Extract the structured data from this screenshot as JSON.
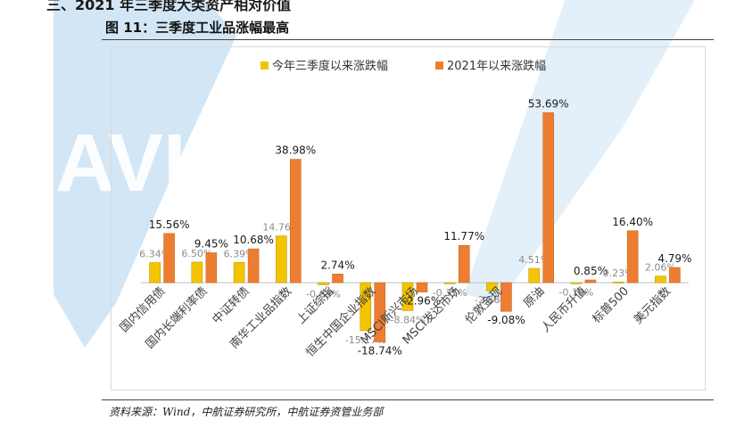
{
  "header": {
    "section_heading": "三、2021 年三季度大类资产相对价值",
    "figure_title": "图 11：三季度工业品涨幅最高"
  },
  "watermark": {
    "text": "AVIC",
    "color": "#cfe3f3"
  },
  "footer": {
    "source": "资料来源：Wind，中航证券研究所，中航证券资管业务部"
  },
  "chart_data": {
    "type": "bar",
    "categories": [
      "国内信用债",
      "国内长端利率债",
      "中证转债",
      "南华工业品指数",
      "上证综指",
      "恒生中国企业指数",
      "MSCI新兴市场",
      "MSCI发达市场",
      "伦敦金现",
      "原油",
      "人民币升值",
      "标普500",
      "美元指数"
    ],
    "series": [
      {
        "name": "今年三季度以来涨跌幅",
        "color": "#f5c400",
        "values": [
          6.34,
          6.5,
          6.39,
          14.76,
          -0.68,
          -15.17,
          -8.84,
          -0.35,
          -2.56,
          4.51,
          -0.19,
          0.23,
          2.06
        ],
        "labels": [
          "6.34%",
          "6.50%",
          "6.39%",
          "14.76%",
          "-0.68%",
          "-15.17%",
          "-8.84%",
          "-0.35%",
          "-2.56%",
          "4.51%",
          "-0.19%",
          "0.23%",
          "2.06%"
        ]
      },
      {
        "name": "2021年以来涨跌幅",
        "color": "#ed7d31",
        "values": [
          15.56,
          9.45,
          10.68,
          38.98,
          2.74,
          -18.74,
          -2.96,
          11.77,
          -9.08,
          53.69,
          0.85,
          16.4,
          4.79
        ],
        "labels": [
          "15.56%",
          "9.45%",
          "10.68%",
          "38.98%",
          "2.74%",
          "-18.74%",
          "-2.96%",
          "11.77%",
          "-9.08%",
          "53.69%",
          "0.85%",
          "16.40%",
          "4.79%"
        ]
      }
    ],
    "legend_position": "top",
    "grid": false
  }
}
